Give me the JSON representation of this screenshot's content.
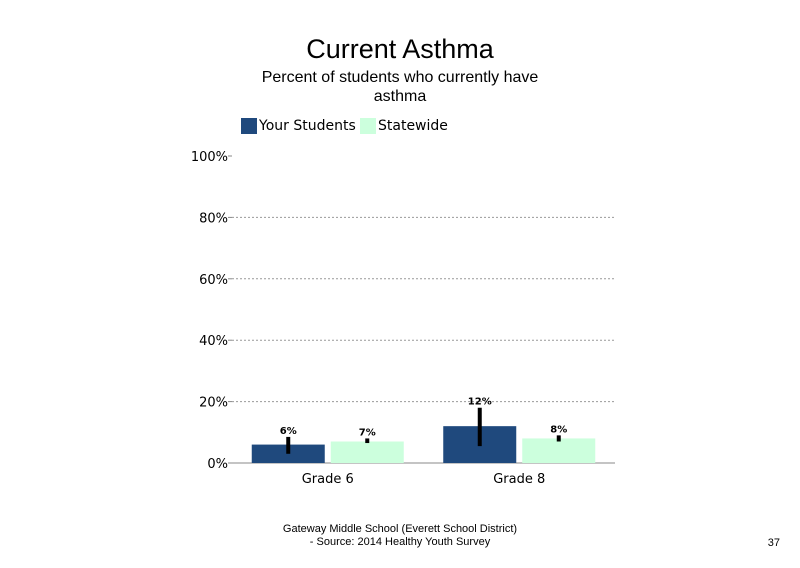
{
  "chart_data": {
    "type": "bar",
    "title": "Current Asthma",
    "subtitle": "Percent of students who currently have asthma",
    "categories": [
      "Grade 6",
      "Grade 8"
    ],
    "series": [
      {
        "name": "Your Students",
        "color": "#1F497D",
        "values": [
          6,
          12
        ],
        "labels": [
          "6%",
          "12%"
        ],
        "error_low": [
          3,
          5.5
        ],
        "error_high": [
          8.5,
          18
        ]
      },
      {
        "name": "Statewide",
        "color": "#CCFFDD",
        "values": [
          7,
          8
        ],
        "labels": [
          "7%",
          "8%"
        ],
        "error_low": [
          6.5,
          7
        ],
        "error_high": [
          8,
          9
        ]
      }
    ],
    "ylim": [
      0,
      100
    ],
    "yticks": [
      0,
      20,
      40,
      60,
      80,
      100
    ],
    "ytick_labels": [
      "0%",
      "20%",
      "40%",
      "60%",
      "80%",
      "100%"
    ],
    "gridlines": true,
    "legend_position": "top-left",
    "xlabel": "",
    "ylabel": ""
  },
  "footer": {
    "line1": "Gateway Middle School (Everett School District)",
    "line2": "- Source: 2014 Healthy Youth Survey",
    "page_number": "37"
  }
}
